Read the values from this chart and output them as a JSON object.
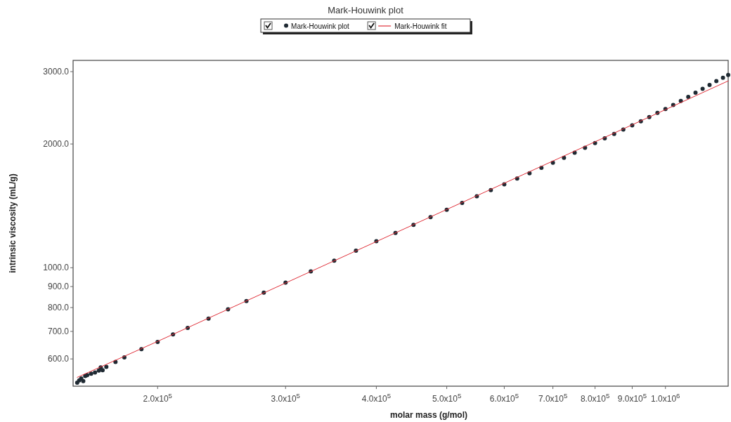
{
  "chart_data": {
    "type": "scatter",
    "title": "Mark-Houwink plot",
    "xlabel": "molar mass (g/mol)",
    "ylabel": "intrinsic viscosity (mL/g)",
    "log": "xy",
    "legend": "top",
    "grid": false,
    "marker": "circle",
    "xlim": [
      153000,
      1220000
    ],
    "ylim": [
      515,
      3195
    ],
    "xticks": [
      {
        "value": 200000,
        "label": "2.0x10$^{5}$"
      },
      {
        "value": 300000,
        "label": "3.0x10$^{5}$"
      },
      {
        "value": 400000,
        "label": "4.0x10$^{5}$"
      },
      {
        "value": 500000,
        "label": "5.0x10$^{5}$"
      },
      {
        "value": 600000,
        "label": "6.0x10$^{5}$"
      },
      {
        "value": 700000,
        "label": "7.0x10$^{5}$"
      },
      {
        "value": 800000,
        "label": "8.0x10$^{5}$"
      },
      {
        "value": 900000,
        "label": "9.0x10$^{5}$"
      },
      {
        "value": 1000000,
        "label": "1.0x10$^{6}$"
      }
    ],
    "yticks": [
      {
        "value": 600,
        "label": "600.0"
      },
      {
        "value": 700,
        "label": "700.0"
      },
      {
        "value": 800,
        "label": "800.0"
      },
      {
        "value": 900,
        "label": "900.0"
      },
      {
        "value": 1000,
        "label": "1000.0"
      },
      {
        "value": 2000,
        "label": "2000.0"
      },
      {
        "value": 3000,
        "label": "3000.0"
      }
    ],
    "series": [
      {
        "name": "Mark-Houwink plot",
        "type": "scatter",
        "color": "#1f2a33",
        "x": [
          155000,
          156000,
          157000,
          158000,
          159000,
          160000,
          162000,
          164000,
          166000,
          167000,
          168000,
          170000,
          175000,
          180000,
          190000,
          200000,
          210000,
          220000,
          235000,
          250000,
          265000,
          280000,
          300000,
          325000,
          350000,
          375000,
          400000,
          425000,
          450000,
          475000,
          500000,
          525000,
          550000,
          575000,
          600000,
          625000,
          650000,
          675000,
          700000,
          725000,
          750000,
          775000,
          800000,
          825000,
          850000,
          875000,
          900000,
          925000,
          950000,
          975000,
          1000000,
          1025000,
          1050000,
          1075000,
          1100000,
          1125000,
          1150000,
          1175000,
          1200000,
          1220000
        ],
        "values": [
          525,
          532,
          538,
          530,
          545,
          548,
          552,
          556,
          562,
          572,
          563,
          574,
          590,
          605,
          634,
          660,
          688,
          714,
          752,
          792,
          830,
          870,
          920,
          980,
          1040,
          1100,
          1160,
          1215,
          1272,
          1328,
          1384,
          1438,
          1492,
          1545,
          1596,
          1648,
          1698,
          1750,
          1800,
          1852,
          1905,
          1958,
          2010,
          2064,
          2116,
          2168,
          2220,
          2272,
          2325,
          2380,
          2432,
          2488,
          2545,
          2605,
          2665,
          2725,
          2785,
          2845,
          2900,
          2945
        ]
      },
      {
        "name": "Mark-Houwink fit",
        "type": "line",
        "marker": "none",
        "line_style": "solid",
        "color": "#e0303a",
        "x": [
          155000,
          200000,
          300000,
          500000,
          800000,
          1000000,
          1220000
        ],
        "values": [
          541,
          662,
          918,
          1386,
          2025,
          2425,
          2848
        ]
      }
    ]
  }
}
